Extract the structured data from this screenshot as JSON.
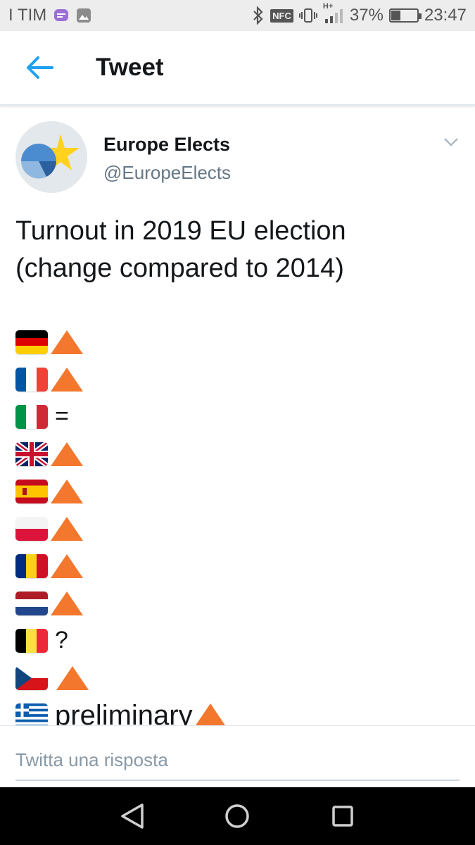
{
  "status_bar": {
    "carrier": "I TIM",
    "network": "H+",
    "nfc": "NFC",
    "battery_percent": "37%",
    "battery_level": 0.37,
    "time": "23:47"
  },
  "header": {
    "title": "Tweet"
  },
  "tweet": {
    "author_name": "Europe Elects",
    "author_handle": "@EuropeElects",
    "text_lines": [
      "Turnout in 2019 EU election",
      "(change compared to 2014)"
    ],
    "rows": [
      {
        "country": "Germany",
        "symbol": "increase-triangle"
      },
      {
        "country": "France",
        "symbol": "increase-triangle"
      },
      {
        "country": "Italy",
        "symbol": "equal",
        "text": "="
      },
      {
        "country": "United Kingdom",
        "symbol": "increase-triangle"
      },
      {
        "country": "Spain",
        "symbol": "increase-triangle"
      },
      {
        "country": "Poland",
        "symbol": "increase-triangle"
      },
      {
        "country": "Romania",
        "symbol": "increase-triangle"
      },
      {
        "country": "Netherlands",
        "symbol": "increase-triangle"
      },
      {
        "country": "Belgium",
        "symbol": "unknown",
        "text": "?"
      },
      {
        "country": "Czech Republic",
        "symbol": "increase-triangle"
      },
      {
        "country": "Greece",
        "symbol": "increase-triangle",
        "text": "preliminary"
      }
    ]
  },
  "reply": {
    "placeholder": "Twitta una risposta"
  },
  "colors": {
    "accent": "#1da1f2",
    "triangle": "#f4772e",
    "secondary_text": "#657786"
  }
}
